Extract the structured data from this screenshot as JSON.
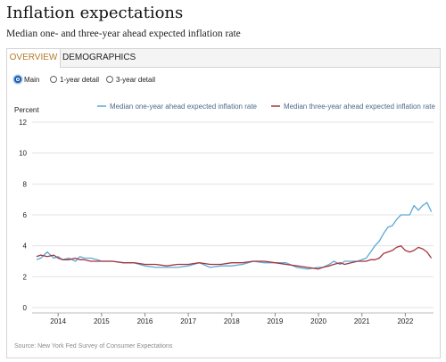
{
  "page": {
    "title": "Inflation expectations",
    "subtitle": "Median one- and three-year ahead expected inflation rate"
  },
  "tabs": [
    {
      "label": "OVERVIEW",
      "active": true
    },
    {
      "label": "DEMOGRAPHICS",
      "active": false
    }
  ],
  "view_options": [
    {
      "label": "Main",
      "selected": true
    },
    {
      "label": "1-year detail",
      "selected": false
    },
    {
      "label": "3-year detail",
      "selected": false
    }
  ],
  "source": "Source: New York Fed Survey of Consumer Expectations",
  "colors": {
    "one_year": "#5aa9d6",
    "three_year": "#a6353f",
    "active_tab": "#b47a2a",
    "grid": "#e3e3e3"
  },
  "chart_data": {
    "type": "line",
    "ylabel": "Percent",
    "ylim": [
      0,
      12
    ],
    "yticks": [
      0,
      2,
      4,
      6,
      8,
      10,
      12
    ],
    "xlim": [
      2013.4,
      2022.65
    ],
    "xticks": [
      2014,
      2015,
      2016,
      2017,
      2018,
      2019,
      2020,
      2021,
      2022
    ],
    "grid": "horizontal",
    "legend_position": "top",
    "series": [
      {
        "name": "Median one-year ahead expected inflation rate",
        "color": "#5aa9d6",
        "points": [
          [
            2013.5,
            3.1
          ],
          [
            2013.6,
            3.2
          ],
          [
            2013.75,
            3.6
          ],
          [
            2013.9,
            3.2
          ],
          [
            2014.0,
            3.3
          ],
          [
            2014.1,
            3.1
          ],
          [
            2014.25,
            3.2
          ],
          [
            2014.4,
            3.0
          ],
          [
            2014.5,
            3.3
          ],
          [
            2014.6,
            3.2
          ],
          [
            2014.75,
            3.2
          ],
          [
            2014.9,
            3.1
          ],
          [
            2015.0,
            3.0
          ],
          [
            2015.25,
            3.0
          ],
          [
            2015.5,
            2.9
          ],
          [
            2015.75,
            2.9
          ],
          [
            2016.0,
            2.7
          ],
          [
            2016.25,
            2.6
          ],
          [
            2016.5,
            2.6
          ],
          [
            2016.75,
            2.6
          ],
          [
            2017.0,
            2.7
          ],
          [
            2017.25,
            2.9
          ],
          [
            2017.5,
            2.6
          ],
          [
            2017.75,
            2.7
          ],
          [
            2018.0,
            2.7
          ],
          [
            2018.25,
            2.8
          ],
          [
            2018.5,
            3.0
          ],
          [
            2018.75,
            2.9
          ],
          [
            2019.0,
            2.9
          ],
          [
            2019.25,
            2.9
          ],
          [
            2019.5,
            2.6
          ],
          [
            2019.75,
            2.5
          ],
          [
            2020.0,
            2.6
          ],
          [
            2020.1,
            2.6
          ],
          [
            2020.25,
            2.8
          ],
          [
            2020.35,
            3.0
          ],
          [
            2020.5,
            2.8
          ],
          [
            2020.6,
            3.0
          ],
          [
            2020.75,
            3.0
          ],
          [
            2020.9,
            3.0
          ],
          [
            2021.0,
            3.1
          ],
          [
            2021.1,
            3.2
          ],
          [
            2021.2,
            3.6
          ],
          [
            2021.3,
            4.0
          ],
          [
            2021.4,
            4.3
          ],
          [
            2021.5,
            4.8
          ],
          [
            2021.6,
            5.2
          ],
          [
            2021.7,
            5.3
          ],
          [
            2021.8,
            5.7
          ],
          [
            2021.9,
            6.0
          ],
          [
            2022.0,
            6.0
          ],
          [
            2022.1,
            6.0
          ],
          [
            2022.2,
            6.6
          ],
          [
            2022.3,
            6.3
          ],
          [
            2022.4,
            6.6
          ],
          [
            2022.5,
            6.8
          ],
          [
            2022.6,
            6.2
          ]
        ]
      },
      {
        "name": "Median three-year ahead expected inflation rate",
        "color": "#a6353f",
        "points": [
          [
            2013.5,
            3.3
          ],
          [
            2013.6,
            3.4
          ],
          [
            2013.75,
            3.3
          ],
          [
            2013.9,
            3.4
          ],
          [
            2014.0,
            3.2
          ],
          [
            2014.1,
            3.1
          ],
          [
            2014.25,
            3.1
          ],
          [
            2014.4,
            3.2
          ],
          [
            2014.5,
            3.1
          ],
          [
            2014.6,
            3.1
          ],
          [
            2014.75,
            3.0
          ],
          [
            2014.9,
            3.0
          ],
          [
            2015.0,
            3.0
          ],
          [
            2015.25,
            3.0
          ],
          [
            2015.5,
            2.9
          ],
          [
            2015.75,
            2.9
          ],
          [
            2016.0,
            2.8
          ],
          [
            2016.25,
            2.8
          ],
          [
            2016.5,
            2.7
          ],
          [
            2016.75,
            2.8
          ],
          [
            2017.0,
            2.8
          ],
          [
            2017.25,
            2.9
          ],
          [
            2017.5,
            2.8
          ],
          [
            2017.75,
            2.8
          ],
          [
            2018.0,
            2.9
          ],
          [
            2018.25,
            2.9
          ],
          [
            2018.5,
            3.0
          ],
          [
            2018.75,
            3.0
          ],
          [
            2019.0,
            2.9
          ],
          [
            2019.25,
            2.8
          ],
          [
            2019.5,
            2.7
          ],
          [
            2019.75,
            2.6
          ],
          [
            2020.0,
            2.5
          ],
          [
            2020.1,
            2.6
          ],
          [
            2020.25,
            2.7
          ],
          [
            2020.35,
            2.8
          ],
          [
            2020.5,
            2.9
          ],
          [
            2020.6,
            2.8
          ],
          [
            2020.75,
            2.9
          ],
          [
            2020.9,
            3.0
          ],
          [
            2021.0,
            3.0
          ],
          [
            2021.1,
            3.0
          ],
          [
            2021.2,
            3.1
          ],
          [
            2021.3,
            3.1
          ],
          [
            2021.4,
            3.2
          ],
          [
            2021.5,
            3.5
          ],
          [
            2021.6,
            3.6
          ],
          [
            2021.7,
            3.7
          ],
          [
            2021.8,
            3.9
          ],
          [
            2021.9,
            4.0
          ],
          [
            2022.0,
            3.7
          ],
          [
            2022.1,
            3.6
          ],
          [
            2022.2,
            3.7
          ],
          [
            2022.3,
            3.9
          ],
          [
            2022.4,
            3.8
          ],
          [
            2022.5,
            3.6
          ],
          [
            2022.6,
            3.2
          ]
        ]
      }
    ]
  }
}
